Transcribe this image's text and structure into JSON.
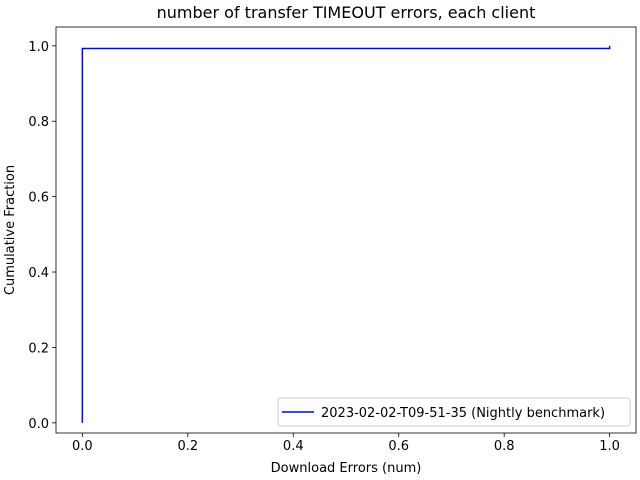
{
  "chart_data": {
    "type": "line",
    "title": "number of transfer TIMEOUT errors, each client",
    "xlabel": "Download Errors (num)",
    "ylabel": "Cumulative Fraction",
    "xlim": [
      -0.05,
      1.05
    ],
    "ylim": [
      -0.027,
      1.05
    ],
    "xticks": [
      0.0,
      0.2,
      0.4,
      0.6,
      0.8,
      1.0
    ],
    "xtick_labels": [
      "0.0",
      "0.2",
      "0.4",
      "0.6",
      "0.8",
      "1.0"
    ],
    "yticks": [
      0.0,
      0.2,
      0.4,
      0.6,
      0.8,
      1.0
    ],
    "ytick_labels": [
      "0.0",
      "0.2",
      "0.4",
      "0.6",
      "0.8",
      "1.0"
    ],
    "grid": false,
    "legend_position": "lower-right",
    "series": [
      {
        "name": "2023-02-02-T09-51-35 (Nightly benchmark)",
        "color": "#0000ff",
        "step": true,
        "x": [
          0.0,
          0.0,
          0.0,
          1.0,
          1.0
        ],
        "y": [
          0.0,
          0.993,
          0.993,
          0.993,
          1.0
        ]
      }
    ]
  }
}
